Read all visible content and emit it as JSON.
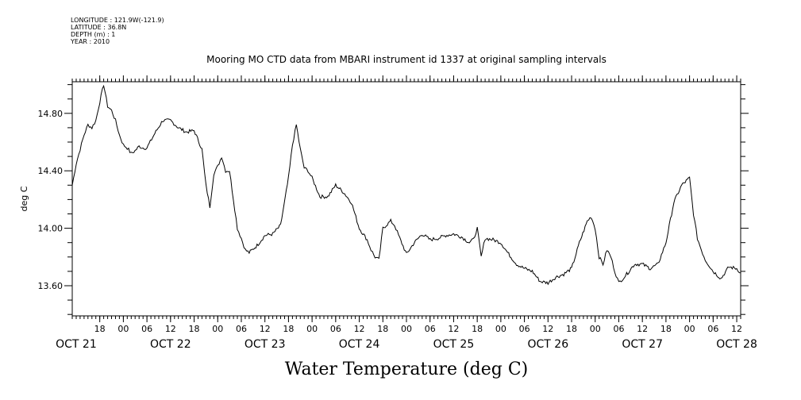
{
  "meta": {
    "longitude": "LONGITUDE : 121.9W(-121.9)",
    "latitude": "LATITUDE : 36.8N",
    "depth": "DEPTH (m) : 1",
    "year": "YEAR : 2010"
  },
  "chart_data": {
    "type": "line",
    "title": "Mooring MO CTD data from MBARI instrument id 1337 at original sampling intervals",
    "xlabel": "Water Temperature (deg C)",
    "ylabel": "deg C",
    "ylim": [
      13.39,
      15.02
    ],
    "xlim": [
      "2010-10-21 11:00",
      "2010-10-28 13:00"
    ],
    "grid": false,
    "y_ticks": [
      "13.60",
      "14.00",
      "14.40",
      "14.80"
    ],
    "x_hour_ticks": [
      {
        "t": "2010-10-21 18:00",
        "label": "18"
      },
      {
        "t": "2010-10-22 00:00",
        "label": "00"
      },
      {
        "t": "2010-10-22 06:00",
        "label": "06"
      },
      {
        "t": "2010-10-22 12:00",
        "label": "12"
      },
      {
        "t": "2010-10-22 18:00",
        "label": "18"
      },
      {
        "t": "2010-10-23 00:00",
        "label": "00"
      },
      {
        "t": "2010-10-23 06:00",
        "label": "06"
      },
      {
        "t": "2010-10-23 12:00",
        "label": "12"
      },
      {
        "t": "2010-10-23 18:00",
        "label": "18"
      },
      {
        "t": "2010-10-24 00:00",
        "label": "00"
      },
      {
        "t": "2010-10-24 06:00",
        "label": "06"
      },
      {
        "t": "2010-10-24 12:00",
        "label": "12"
      },
      {
        "t": "2010-10-24 18:00",
        "label": "18"
      },
      {
        "t": "2010-10-25 00:00",
        "label": "00"
      },
      {
        "t": "2010-10-25 06:00",
        "label": "06"
      },
      {
        "t": "2010-10-25 12:00",
        "label": "12"
      },
      {
        "t": "2010-10-25 18:00",
        "label": "18"
      },
      {
        "t": "2010-10-26 00:00",
        "label": "00"
      },
      {
        "t": "2010-10-26 06:00",
        "label": "06"
      },
      {
        "t": "2010-10-26 12:00",
        "label": "12"
      },
      {
        "t": "2010-10-26 18:00",
        "label": "18"
      },
      {
        "t": "2010-10-27 00:00",
        "label": "00"
      },
      {
        "t": "2010-10-27 06:00",
        "label": "06"
      },
      {
        "t": "2010-10-27 12:00",
        "label": "12"
      },
      {
        "t": "2010-10-27 18:00",
        "label": "18"
      },
      {
        "t": "2010-10-28 00:00",
        "label": "00"
      },
      {
        "t": "2010-10-28 06:00",
        "label": "06"
      },
      {
        "t": "2010-10-28 12:00",
        "label": "12"
      }
    ],
    "x_day_labels": [
      {
        "t": "2010-10-21 12:00",
        "label": "OCT 21"
      },
      {
        "t": "2010-10-22 12:00",
        "label": "OCT 22"
      },
      {
        "t": "2010-10-23 12:00",
        "label": "OCT 23"
      },
      {
        "t": "2010-10-24 12:00",
        "label": "OCT 24"
      },
      {
        "t": "2010-10-25 12:00",
        "label": "OCT 25"
      },
      {
        "t": "2010-10-26 12:00",
        "label": "OCT 26"
      },
      {
        "t": "2010-10-27 12:00",
        "label": "OCT 27"
      },
      {
        "t": "2010-10-28 12:00",
        "label": "OCT 28"
      }
    ],
    "series": [
      {
        "color": "#000000",
        "x": [
          "2010-10-21 11:00",
          "2010-10-21 12:00",
          "2010-10-21 13:00",
          "2010-10-21 14:00",
          "2010-10-21 15:00",
          "2010-10-21 16:00",
          "2010-10-21 17:00",
          "2010-10-21 18:00",
          "2010-10-21 19:00",
          "2010-10-21 20:00",
          "2010-10-21 21:00",
          "2010-10-21 22:00",
          "2010-10-21 23:00",
          "2010-10-22 00:00",
          "2010-10-22 01:00",
          "2010-10-22 02:00",
          "2010-10-22 03:00",
          "2010-10-22 04:00",
          "2010-10-22 05:00",
          "2010-10-22 06:00",
          "2010-10-22 08:00",
          "2010-10-22 10:00",
          "2010-10-22 12:00",
          "2010-10-22 14:00",
          "2010-10-22 16:00",
          "2010-10-22 18:00",
          "2010-10-22 20:00",
          "2010-10-22 21:00",
          "2010-10-22 22:00",
          "2010-10-22 23:00",
          "2010-10-23 00:00",
          "2010-10-23 01:00",
          "2010-10-23 02:00",
          "2010-10-23 03:00",
          "2010-10-23 04:00",
          "2010-10-23 05:00",
          "2010-10-23 06:00",
          "2010-10-23 07:00",
          "2010-10-23 08:00",
          "2010-10-23 10:00",
          "2010-10-23 12:00",
          "2010-10-23 14:00",
          "2010-10-23 16:00",
          "2010-10-23 18:00",
          "2010-10-23 19:00",
          "2010-10-23 20:00",
          "2010-10-23 21:00",
          "2010-10-23 22:00",
          "2010-10-23 23:00",
          "2010-10-24 00:00",
          "2010-10-24 02:00",
          "2010-10-24 04:00",
          "2010-10-24 06:00",
          "2010-10-24 08:00",
          "2010-10-24 10:00",
          "2010-10-24 12:00",
          "2010-10-24 14:00",
          "2010-10-24 15:00",
          "2010-10-24 16:00",
          "2010-10-24 17:00",
          "2010-10-24 18:00",
          "2010-10-24 20:00",
          "2010-10-24 21:00",
          "2010-10-24 22:00",
          "2010-10-25 00:00",
          "2010-10-25 02:00",
          "2010-10-25 04:00",
          "2010-10-25 06:00",
          "2010-10-25 08:00",
          "2010-10-25 10:00",
          "2010-10-25 12:00",
          "2010-10-25 14:00",
          "2010-10-25 16:00",
          "2010-10-25 17:00",
          "2010-10-25 18:00",
          "2010-10-25 19:00",
          "2010-10-25 20:00",
          "2010-10-25 22:00",
          "2010-10-26 00:00",
          "2010-10-26 02:00",
          "2010-10-26 04:00",
          "2010-10-26 06:00",
          "2010-10-26 08:00",
          "2010-10-26 10:00",
          "2010-10-26 12:00",
          "2010-10-26 14:00",
          "2010-10-26 16:00",
          "2010-10-26 18:00",
          "2010-10-26 20:00",
          "2010-10-26 22:00",
          "2010-10-26 23:00",
          "2010-10-27 00:00",
          "2010-10-27 01:00",
          "2010-10-27 02:00",
          "2010-10-27 03:00",
          "2010-10-27 04:00",
          "2010-10-27 05:00",
          "2010-10-27 06:00",
          "2010-10-27 07:00",
          "2010-10-27 08:00",
          "2010-10-27 10:00",
          "2010-10-27 12:00",
          "2010-10-27 14:00",
          "2010-10-27 16:00",
          "2010-10-27 18:00",
          "2010-10-27 20:00",
          "2010-10-27 22:00",
          "2010-10-28 00:00",
          "2010-10-28 01:00",
          "2010-10-28 02:00",
          "2010-10-28 03:00",
          "2010-10-28 04:00",
          "2010-10-28 06:00",
          "2010-10-28 08:00",
          "2010-10-28 10:00",
          "2010-10-28 12:00",
          "2010-10-28 13:00"
        ],
        "y": [
          14.3,
          14.45,
          14.55,
          14.65,
          14.72,
          14.7,
          14.75,
          14.88,
          15.0,
          14.85,
          14.82,
          14.75,
          14.65,
          14.58,
          14.56,
          14.52,
          14.54,
          14.57,
          14.56,
          14.56,
          14.66,
          14.75,
          14.75,
          14.7,
          14.67,
          14.68,
          14.55,
          14.3,
          14.15,
          14.38,
          14.43,
          14.5,
          14.4,
          14.4,
          14.2,
          14.0,
          13.93,
          13.85,
          13.83,
          13.88,
          13.95,
          13.96,
          14.02,
          14.35,
          14.58,
          14.72,
          14.55,
          14.42,
          14.4,
          14.35,
          14.22,
          14.22,
          14.3,
          14.25,
          14.18,
          14.0,
          13.92,
          13.85,
          13.8,
          13.78,
          14.0,
          14.05,
          14.02,
          13.95,
          13.82,
          13.9,
          13.96,
          13.92,
          13.93,
          13.95,
          13.96,
          13.94,
          13.9,
          13.92,
          14.0,
          13.8,
          13.93,
          13.92,
          13.9,
          13.82,
          13.75,
          13.72,
          13.7,
          13.63,
          13.62,
          13.66,
          13.68,
          13.72,
          13.9,
          14.05,
          14.08,
          14.0,
          13.8,
          13.75,
          13.85,
          13.8,
          13.7,
          13.62,
          13.65,
          13.68,
          13.75,
          13.75,
          13.72,
          13.75,
          13.9,
          14.18,
          14.3,
          14.35,
          14.1,
          13.93,
          13.85,
          13.78,
          13.7,
          13.65,
          13.73,
          13.72,
          13.69
        ]
      }
    ]
  }
}
